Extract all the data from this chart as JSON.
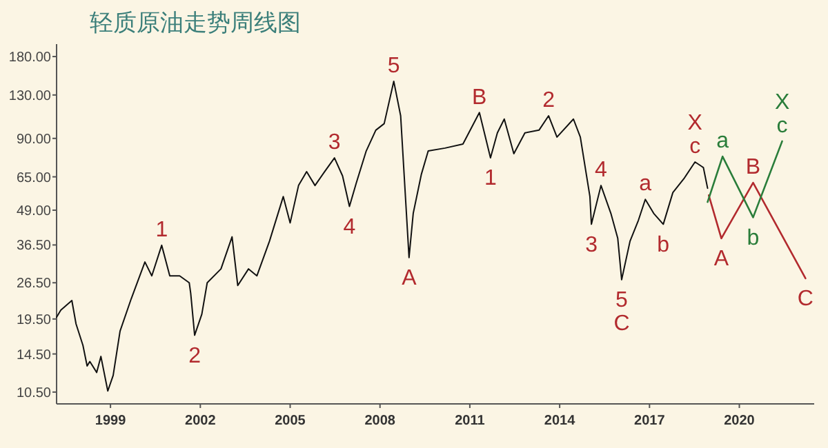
{
  "chart_data": {
    "type": "line",
    "title": "轻质原油走势周线图",
    "log": "y",
    "grid": false,
    "marker": "none",
    "line_style": "solid",
    "xlim": [
      1997.2,
      2022.5
    ],
    "xticks": [
      1999,
      2002,
      2005,
      2008,
      2011,
      2014,
      2017,
      2020
    ],
    "ylim": [
      9.5,
      200
    ],
    "yticks": [
      {
        "value": 10.5,
        "label": "10.50"
      },
      {
        "value": 14.5,
        "label": "14.50"
      },
      {
        "value": 19.5,
        "label": "19.50"
      },
      {
        "value": 26.5,
        "label": "26.50"
      },
      {
        "value": 36.5,
        "label": "36.50"
      },
      {
        "value": 49,
        "label": "49.00"
      },
      {
        "value": 65,
        "label": "65.00"
      },
      {
        "value": 90,
        "label": "90.00"
      },
      {
        "value": 130,
        "label": "130.00"
      },
      {
        "value": 180,
        "label": "180.00"
      }
    ],
    "series": [
      {
        "color": "#111111",
        "x": [
          1997.2,
          1997.34,
          1997.71,
          1997.85,
          1998.08,
          1998.22,
          1998.31,
          1998.54,
          1998.68,
          1998.91,
          1999.09,
          1999.32,
          1999.69,
          2000.15,
          2000.38,
          2000.71,
          2000.98,
          2001.31,
          2001.63,
          2001.68,
          2001.81,
          2002.05,
          2002.23,
          2002.69,
          2003.06,
          2003.25,
          2003.61,
          2003.89,
          2004.31,
          2004.77,
          2005.0,
          2005.28,
          2005.55,
          2005.83,
          2006.15,
          2006.48,
          2006.75,
          2006.98,
          2007.21,
          2007.54,
          2007.86,
          2008.14,
          2008.46,
          2008.69,
          2008.97,
          2009.11,
          2009.38,
          2009.61,
          2010.17,
          2010.77,
          2011.32,
          2011.69,
          2011.92,
          2012.15,
          2012.47,
          2012.84,
          2013.31,
          2013.63,
          2013.91,
          2014.46,
          2014.69,
          2015.01,
          2015.06,
          2015.38,
          2015.71,
          2015.94,
          2016.07,
          2016.35,
          2016.63,
          2016.86,
          2017.14,
          2017.46,
          2017.78,
          2018.15,
          2018.52,
          2018.8,
          2018.94
        ],
        "values": [
          19.8,
          21.0,
          22.8,
          18.7,
          15.6,
          13.1,
          13.6,
          12.4,
          14.2,
          10.6,
          12.1,
          17.6,
          23.1,
          31.6,
          28.1,
          36.4,
          28.1,
          28.1,
          26.5,
          24.2,
          17.0,
          20.3,
          26.5,
          29.8,
          39.1,
          25.9,
          29.8,
          28.1,
          37.7,
          55.0,
          44.0,
          60.4,
          67.9,
          60.4,
          67.9,
          76.3,
          65.5,
          50.6,
          61.8,
          80.9,
          96.5,
          102,
          146,
          109,
          32.8,
          47.7,
          66.3,
          80.9,
          82.9,
          85.8,
          112,
          76.3,
          94.3,
          106,
          79.1,
          94.3,
          96.5,
          109,
          91.0,
          106,
          91.0,
          55.0,
          43.5,
          60.4,
          47.7,
          38.6,
          27.2,
          37.7,
          45.0,
          53.7,
          47.7,
          43.5,
          56.9,
          64.0,
          73.7,
          70.3,
          59.0
        ]
      },
      {
        "color": "#b22a2e",
        "x": [
          2018.98,
          2019.4,
          2020.46,
          2022.21
        ],
        "values": [
          55.6,
          38.6,
          61.8,
          27.5
        ]
      },
      {
        "color": "#2a7d3a",
        "x": [
          2018.94,
          2019.44,
          2020.46,
          2021.43
        ],
        "values": [
          52.5,
          77.2,
          46.1,
          87.9
        ]
      }
    ],
    "annotations": [
      {
        "text": "1",
        "x": 2000.71,
        "y": 36.4
      },
      {
        "text": "2",
        "x": 2001.81,
        "y": 17.0
      },
      {
        "text": "3",
        "x": 2006.48,
        "y": 76.3
      },
      {
        "text": "4",
        "x": 2006.98,
        "y": 50.6
      },
      {
        "text": "5",
        "x": 2008.46,
        "y": 146
      },
      {
        "text": "A",
        "x": 2008.97,
        "y": 32.8
      },
      {
        "text": "B",
        "x": 2011.32,
        "y": 112
      },
      {
        "text": "1",
        "x": 2011.69,
        "y": 76.3
      },
      {
        "text": "2",
        "x": 2013.63,
        "y": 109
      },
      {
        "text": "3",
        "x": 2015.06,
        "y": 43.5
      },
      {
        "text": "4",
        "x": 2015.38,
        "y": 60.4
      },
      {
        "text": "5",
        "x": 2016.07,
        "y": 27.2
      },
      {
        "text": "C",
        "x": 2016.07,
        "y": 27.2
      },
      {
        "text": "a",
        "x": 2016.86,
        "y": 53.7
      },
      {
        "text": "b",
        "x": 2017.46,
        "y": 43.5
      },
      {
        "text": "X",
        "x": 2018.52,
        "y": 73.7
      },
      {
        "text": "c",
        "x": 2018.52,
        "y": 73.7
      },
      {
        "text": "A",
        "x": 2019.4,
        "y": 38.6
      },
      {
        "text": "B",
        "x": 2020.46,
        "y": 61.8
      },
      {
        "text": "C",
        "x": 2022.21,
        "y": 27.5
      },
      {
        "text": "a",
        "x": 2019.44,
        "y": 77.2
      },
      {
        "text": "b",
        "x": 2020.46,
        "y": 46.1
      },
      {
        "text": "X",
        "x": 2021.43,
        "y": 87.9
      },
      {
        "text": "c",
        "x": 2021.43,
        "y": 87.9
      }
    ]
  }
}
